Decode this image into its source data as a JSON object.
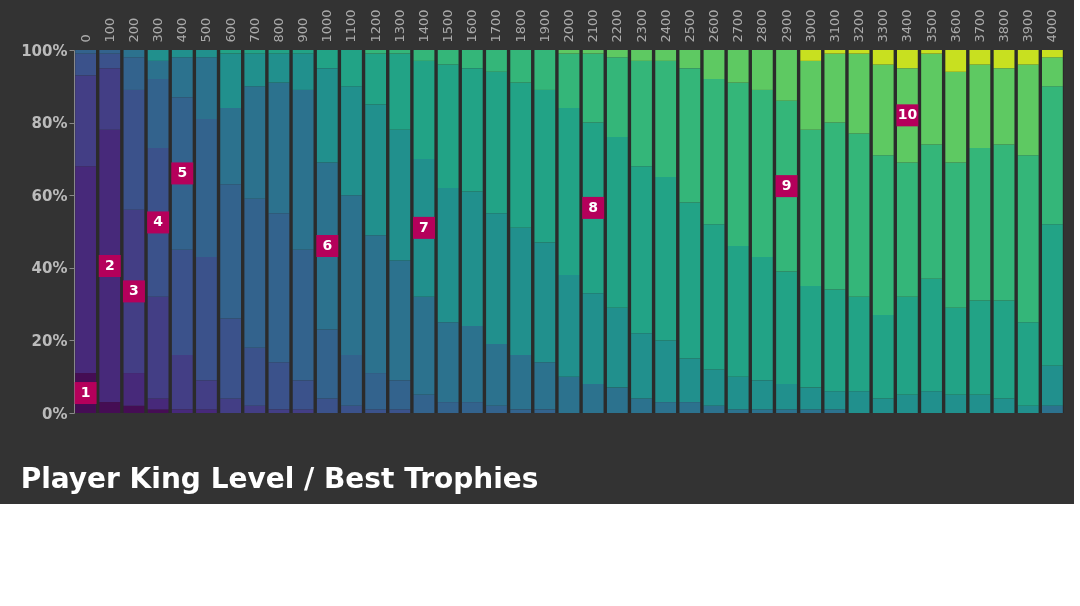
{
  "chart_data": {
    "type": "bar",
    "stacked": true,
    "title": "Player King Level / Best Trophies",
    "categories": [
      "0",
      "100",
      "200",
      "300",
      "400",
      "500",
      "600",
      "700",
      "800",
      "900",
      "1000",
      "1100",
      "1200",
      "1300",
      "1400",
      "1500",
      "1600",
      "1700",
      "1800",
      "1900",
      "2000",
      "2100",
      "2200",
      "2300",
      "2400",
      "2500",
      "2600",
      "2700",
      "2800",
      "2900",
      "3000",
      "3100",
      "3200",
      "3300",
      "3400",
      "3500",
      "3600",
      "3700",
      "3800",
      "3900",
      "4000"
    ],
    "ylim": [
      0,
      100
    ],
    "yticks": [
      {
        "value": 0,
        "label": "0%"
      },
      {
        "value": 20,
        "label": "20%"
      },
      {
        "value": 40,
        "label": "40%"
      },
      {
        "value": 60,
        "label": "60%"
      },
      {
        "value": 80,
        "label": "80%"
      },
      {
        "value": 100,
        "label": "100%"
      }
    ],
    "series": [
      {
        "name": "1",
        "color": "#450d54",
        "values": [
          11,
          3,
          2,
          1,
          0,
          0,
          0,
          0,
          0,
          0,
          0,
          0,
          0,
          0,
          0,
          0,
          0,
          0,
          0,
          0,
          0,
          0,
          0,
          0,
          0,
          0,
          0,
          0,
          0,
          0,
          0,
          0,
          0,
          0,
          0,
          0,
          0,
          0,
          0,
          0,
          0
        ]
      },
      {
        "name": "2",
        "color": "#47297a",
        "values": [
          57,
          75,
          9,
          3,
          1,
          1,
          0,
          0,
          0,
          0,
          0,
          0,
          0,
          0,
          0,
          0,
          0,
          0,
          0,
          0,
          0,
          0,
          0,
          0,
          0,
          0,
          0,
          0,
          0,
          0,
          0,
          0,
          0,
          0,
          0,
          0,
          0,
          0,
          0,
          0,
          0
        ]
      },
      {
        "name": "3",
        "color": "#433e85",
        "values": [
          25,
          17,
          45,
          28,
          15,
          8,
          4,
          2,
          1,
          1,
          0,
          0,
          0,
          0,
          0,
          0,
          0,
          0,
          0,
          0,
          0,
          0,
          0,
          0,
          0,
          0,
          0,
          0,
          0,
          0,
          0,
          0,
          0,
          0,
          0,
          0,
          0,
          0,
          0,
          0,
          0
        ]
      },
      {
        "name": "4",
        "color": "#3b528b",
        "values": [
          6,
          4,
          33,
          41,
          29,
          34,
          22,
          16,
          13,
          8,
          4,
          2,
          1,
          1,
          0,
          0,
          0,
          0,
          0,
          0,
          0,
          0,
          0,
          0,
          0,
          0,
          0,
          0,
          0,
          0,
          0,
          0,
          0,
          0,
          0,
          0,
          0,
          0,
          0,
          0,
          0
        ]
      },
      {
        "name": "5",
        "color": "#33638d",
        "values": [
          1,
          1,
          9,
          19,
          42,
          38,
          37,
          41,
          41,
          36,
          19,
          14,
          10,
          8,
          5,
          3,
          3,
          2,
          1,
          1,
          0,
          0,
          0,
          0,
          0,
          0,
          0,
          0,
          0,
          0,
          0,
          0,
          0,
          0,
          0,
          0,
          0,
          0,
          0,
          0,
          0
        ]
      },
      {
        "name": "6",
        "color": "#2c728e",
        "values": [
          0,
          0,
          2,
          5,
          11,
          17,
          21,
          31,
          36,
          44,
          46,
          44,
          38,
          33,
          27,
          22,
          21,
          17,
          15,
          13,
          10,
          8,
          7,
          4,
          3,
          3,
          2,
          1,
          1,
          1,
          1,
          1,
          0,
          0,
          0,
          0,
          0,
          0,
          0,
          0,
          2
        ]
      },
      {
        "name": "7",
        "color": "#21908d",
        "values": [
          0,
          0,
          0,
          3,
          2,
          2,
          15,
          9,
          8,
          10,
          26,
          30,
          36,
          36,
          38,
          37,
          37,
          36,
          35,
          33,
          28,
          25,
          22,
          18,
          17,
          12,
          10,
          9,
          8,
          7,
          6,
          5,
          6,
          4,
          5,
          6,
          5,
          5,
          4,
          2,
          11
        ]
      },
      {
        "name": "8",
        "color": "#22a386",
        "values": [
          0,
          0,
          0,
          0,
          0,
          0,
          1,
          1,
          1,
          1,
          5,
          10,
          14,
          21,
          27,
          34,
          34,
          39,
          40,
          42,
          46,
          47,
          47,
          46,
          45,
          43,
          40,
          36,
          34,
          31,
          28,
          28,
          26,
          23,
          27,
          31,
          24,
          26,
          27,
          23,
          39
        ]
      },
      {
        "name": "9",
        "color": "#34b679",
        "values": [
          0,
          0,
          0,
          0,
          0,
          0,
          0,
          0,
          0,
          0,
          0,
          0,
          1,
          1,
          3,
          4,
          5,
          6,
          9,
          11,
          15,
          19,
          22,
          29,
          32,
          37,
          40,
          45,
          46,
          47,
          43,
          46,
          45,
          44,
          37,
          37,
          40,
          42,
          43,
          46,
          38
        ]
      },
      {
        "name": "10",
        "color": "#5ec962",
        "values": [
          0,
          0,
          0,
          0,
          0,
          0,
          0,
          0,
          0,
          0,
          0,
          0,
          0,
          0,
          0,
          0,
          0,
          0,
          0,
          0,
          1,
          1,
          2,
          3,
          3,
          5,
          8,
          9,
          11,
          14,
          19,
          19,
          22,
          25,
          26,
          25,
          25,
          23,
          21,
          25,
          8
        ]
      },
      {
        "color": "#c8e020",
        "values": [
          0,
          0,
          0,
          0,
          0,
          0,
          0,
          0,
          0,
          0,
          0,
          0,
          0,
          0,
          0,
          0,
          0,
          0,
          0,
          0,
          0,
          0,
          0,
          0,
          0,
          0,
          0,
          0,
          0,
          0,
          3,
          1,
          1,
          4,
          5,
          1,
          6,
          4,
          5,
          4,
          2
        ]
      }
    ]
  }
}
